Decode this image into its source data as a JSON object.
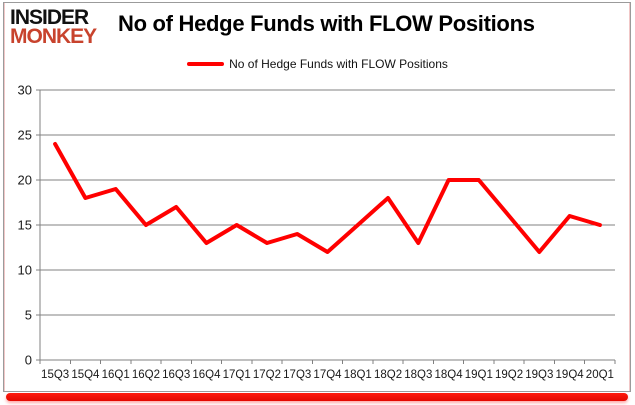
{
  "logo": {
    "line1": "INSIDER",
    "line2": "MONKEY"
  },
  "header": {
    "title": "No of Hedge Funds with FLOW Positions"
  },
  "legend": {
    "label": "No of Hedge Funds with FLOW Positions"
  },
  "colors": {
    "series_line": "#ff0000",
    "gridline": "#808080",
    "axis": "#808080",
    "tick_label": "#1a1a1a",
    "logo_red": "#c8432d",
    "accent_bar": "#e20800",
    "frame_border": "#9b9b9b"
  },
  "chart_data": {
    "type": "line",
    "title": "No of Hedge Funds with FLOW Positions",
    "series_name": "No of Hedge Funds with FLOW Positions",
    "categories": [
      "15Q3",
      "15Q4",
      "16Q1",
      "16Q2",
      "16Q3",
      "16Q4",
      "17Q1",
      "17Q2",
      "17Q3",
      "17Q4",
      "18Q1",
      "18Q2",
      "18Q3",
      "18Q4",
      "19Q1",
      "19Q2",
      "19Q3",
      "19Q4",
      "20Q1"
    ],
    "values": [
      24,
      18,
      19,
      15,
      17,
      13,
      15,
      13,
      14,
      12,
      15,
      18,
      13,
      20,
      20,
      16,
      12,
      16,
      15
    ],
    "xlabel": "",
    "ylabel": "",
    "ylim": [
      0,
      30
    ],
    "yticks": [
      0,
      5,
      10,
      15,
      20,
      25,
      30
    ],
    "grid": true,
    "legend_position": "top"
  }
}
